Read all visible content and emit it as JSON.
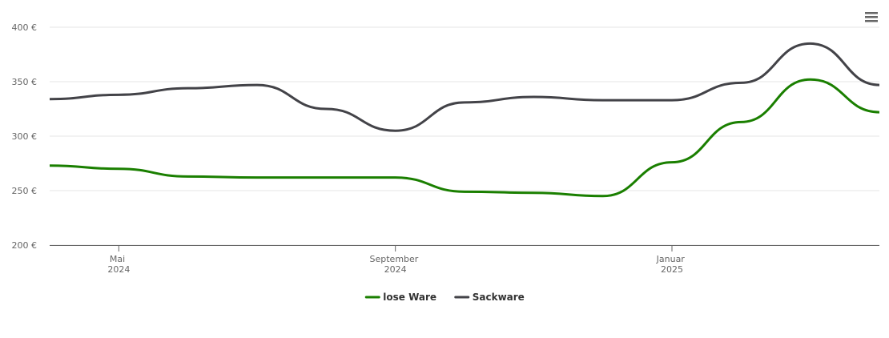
{
  "chart_data": {
    "type": "line",
    "x": [
      "2024-04",
      "2024-05",
      "2024-06",
      "2024-07",
      "2024-08",
      "2024-09",
      "2024-10",
      "2024-11",
      "2024-12",
      "2025-01",
      "2025-02",
      "2025-03",
      "2025-04"
    ],
    "xlim": [
      "2024-04",
      "2025-04"
    ],
    "xticks": [
      {
        "value": "2024-05",
        "label": "Mai 2024"
      },
      {
        "value": "2024-09",
        "label": "September 2024"
      },
      {
        "value": "2025-01",
        "label": "Januar 2025"
      }
    ],
    "ylim": [
      200,
      400
    ],
    "yticks": [
      {
        "value": 200,
        "label": "200 €"
      },
      {
        "value": 250,
        "label": "250 €"
      },
      {
        "value": 300,
        "label": "300 €"
      },
      {
        "value": 350,
        "label": "350 €"
      },
      {
        "value": 400,
        "label": "400 €"
      }
    ],
    "grid": true,
    "legend": "bottom",
    "series": [
      {
        "name": "lose Ware",
        "color": "#1a7f00",
        "values": [
          273,
          270,
          263,
          262,
          262,
          262,
          249,
          248,
          245,
          276,
          313,
          352,
          322
        ]
      },
      {
        "name": "Sackware",
        "color": "#434348",
        "values": [
          334,
          338,
          344,
          347,
          325,
          305,
          331,
          336,
          333,
          333,
          349,
          385,
          347
        ]
      }
    ]
  }
}
